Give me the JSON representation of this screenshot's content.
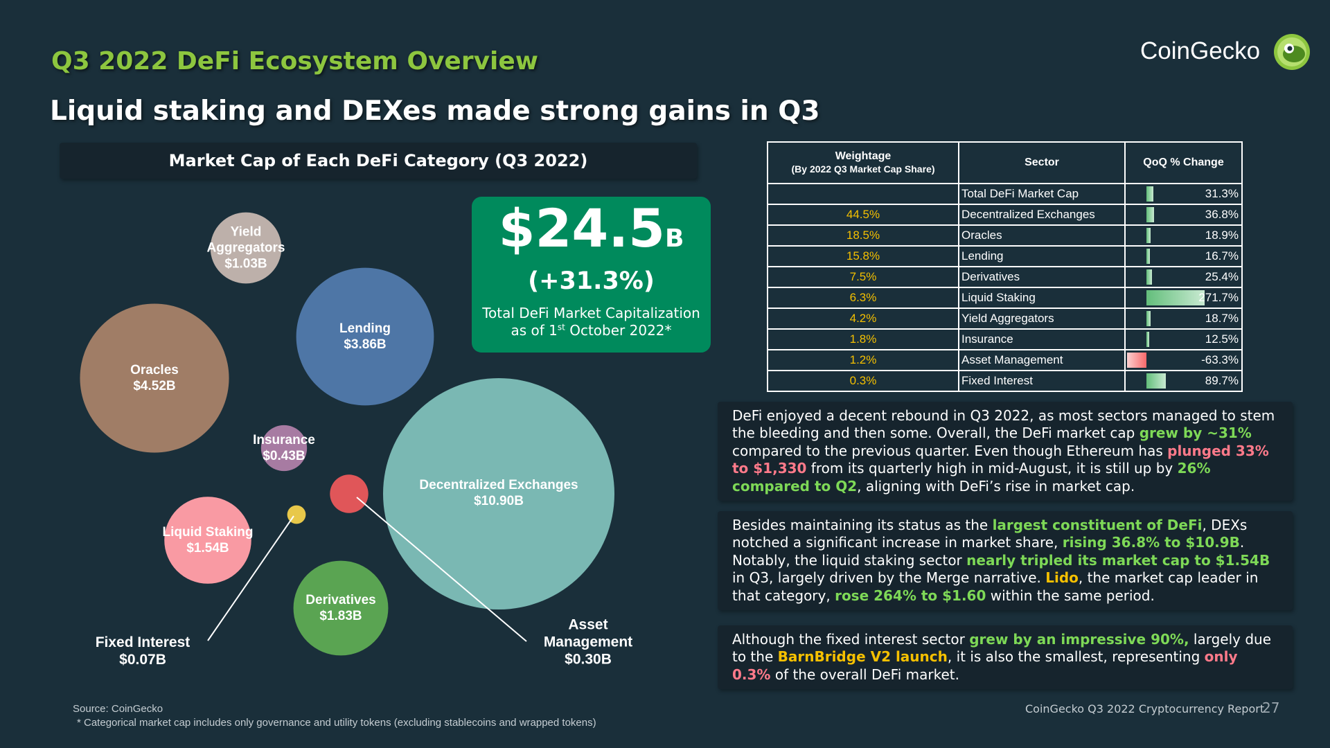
{
  "page": {
    "kicker": "Q3 2022 DeFi Ecosystem Overview",
    "headline": "Liquid staking and DEXes made strong gains in Q3",
    "brand": "CoinGecko",
    "source": "Source: CoinGecko",
    "footnote": "* Categorical market cap includes only governance and utility tokens (excluding stablecoins and wrapped tokens)",
    "report_name": "CoinGecko Q3 2022 Cryptocurrency Report",
    "page_number": "27"
  },
  "total_card": {
    "value": "$24.5",
    "unit": "B",
    "change": "(+31.3%)",
    "caption_line1": "Total DeFi Market Capitalization",
    "caption_pre": "as of 1",
    "caption_sup": "st",
    "caption_post": " October 2022*"
  },
  "chart_data": {
    "type": "bubble",
    "title": "Market Cap of Each DeFi Category (Q3 2022)",
    "unit": "USD billions",
    "series": [
      {
        "name": "Decentralized Exchanges",
        "label": "$10.90B",
        "value": 10.9,
        "color": "#7ab8b3"
      },
      {
        "name": "Oracles",
        "label": "$4.52B",
        "value": 4.52,
        "color": "#a07d66"
      },
      {
        "name": "Lending",
        "label": "$3.86B",
        "value": 3.86,
        "color": "#4e76a6"
      },
      {
        "name": "Derivatives",
        "label": "$1.83B",
        "value": 1.83,
        "color": "#5aa452"
      },
      {
        "name": "Liquid Staking",
        "label": "$1.54B",
        "value": 1.54,
        "color": "#f99aa3"
      },
      {
        "name": "Yield Aggregators",
        "label": "$1.03B",
        "value": 1.03,
        "color": "#bdb0aa"
      },
      {
        "name": "Insurance",
        "label": "$0.43B",
        "value": 0.43,
        "color": "#a77ba2"
      },
      {
        "name": "Asset Management",
        "label": "$0.30B",
        "value": 0.3,
        "color": "#e05659"
      },
      {
        "name": "Fixed Interest",
        "label": "$0.07B",
        "value": 0.07,
        "color": "#e8c84a"
      }
    ]
  },
  "table": {
    "headers": {
      "weight_line1": "Weightage",
      "weight_line2": "(By 2022 Q3 Market Cap Share)",
      "sector": "Sector",
      "qoq": "QoQ % Change"
    },
    "rows": [
      {
        "weight": "",
        "sector": "Total DeFi Market Cap",
        "qoq": "31.3%",
        "qoq_value": 31.3
      },
      {
        "weight": "44.5%",
        "sector": "Decentralized Exchanges",
        "qoq": "36.8%",
        "qoq_value": 36.8
      },
      {
        "weight": "18.5%",
        "sector": "Oracles",
        "qoq": "18.9%",
        "qoq_value": 18.9
      },
      {
        "weight": "15.8%",
        "sector": "Lending",
        "qoq": "16.7%",
        "qoq_value": 16.7
      },
      {
        "weight": "7.5%",
        "sector": "Derivatives",
        "qoq": "25.4%",
        "qoq_value": 25.4
      },
      {
        "weight": "6.3%",
        "sector": "Liquid Staking",
        "qoq": "271.7%",
        "qoq_value": 271.7
      },
      {
        "weight": "4.2%",
        "sector": "Yield Aggregators",
        "qoq": "18.7%",
        "qoq_value": 18.7
      },
      {
        "weight": "1.8%",
        "sector": "Insurance",
        "qoq": "12.5%",
        "qoq_value": 12.5
      },
      {
        "weight": "1.2%",
        "sector": "Asset Management",
        "qoq": "-63.3%",
        "qoq_value": -63.3
      },
      {
        "weight": "0.3%",
        "sector": "Fixed Interest",
        "qoq": "89.7%",
        "qoq_value": 89.7
      }
    ]
  },
  "notes": [
    [
      {
        "t": "DeFi enjoyed a decent rebound in Q3 2022, as most sectors managed to stem the bleeding and then some. Overall, the DeFi market cap "
      },
      {
        "t": "grew by ~31%",
        "c": "g"
      },
      {
        "t": " compared to the previous quarter. Even though Ethereum has "
      },
      {
        "t": "plunged 33% to $1,330",
        "c": "r"
      },
      {
        "t": " from its quarterly high in mid-August, it is still up by "
      },
      {
        "t": "26% compared to Q2",
        "c": "g"
      },
      {
        "t": ", aligning with DeFi’s rise in market cap."
      }
    ],
    [
      {
        "t": "Besides maintaining its status as the "
      },
      {
        "t": "largest constituent of DeFi",
        "c": "g"
      },
      {
        "t": ", DEXs notched a significant increase in market share, "
      },
      {
        "t": "rising 36.8% to $10.9B",
        "c": "g"
      },
      {
        "t": ". Notably, the liquid staking sector "
      },
      {
        "t": "nearly tripled its market cap to $1.54B",
        "c": "g"
      },
      {
        "t": " in Q3, largely driven by the Merge narrative. "
      },
      {
        "t": "Lido",
        "c": "y"
      },
      {
        "t": ", the market cap leader in that category, "
      },
      {
        "t": "rose 264% to $1.60",
        "c": "g"
      },
      {
        "t": " within the same period."
      }
    ],
    [
      {
        "t": "Although the fixed interest sector "
      },
      {
        "t": "grew by an impressive 90%,",
        "c": "g"
      },
      {
        "t": " largely due to the "
      },
      {
        "t": "BarnBridge V2 launch",
        "c": "y"
      },
      {
        "t": ", it is also the smallest, representing "
      },
      {
        "t": "only 0.3%",
        "c": "r"
      },
      {
        "t": " of the overall DeFi market."
      }
    ]
  ]
}
